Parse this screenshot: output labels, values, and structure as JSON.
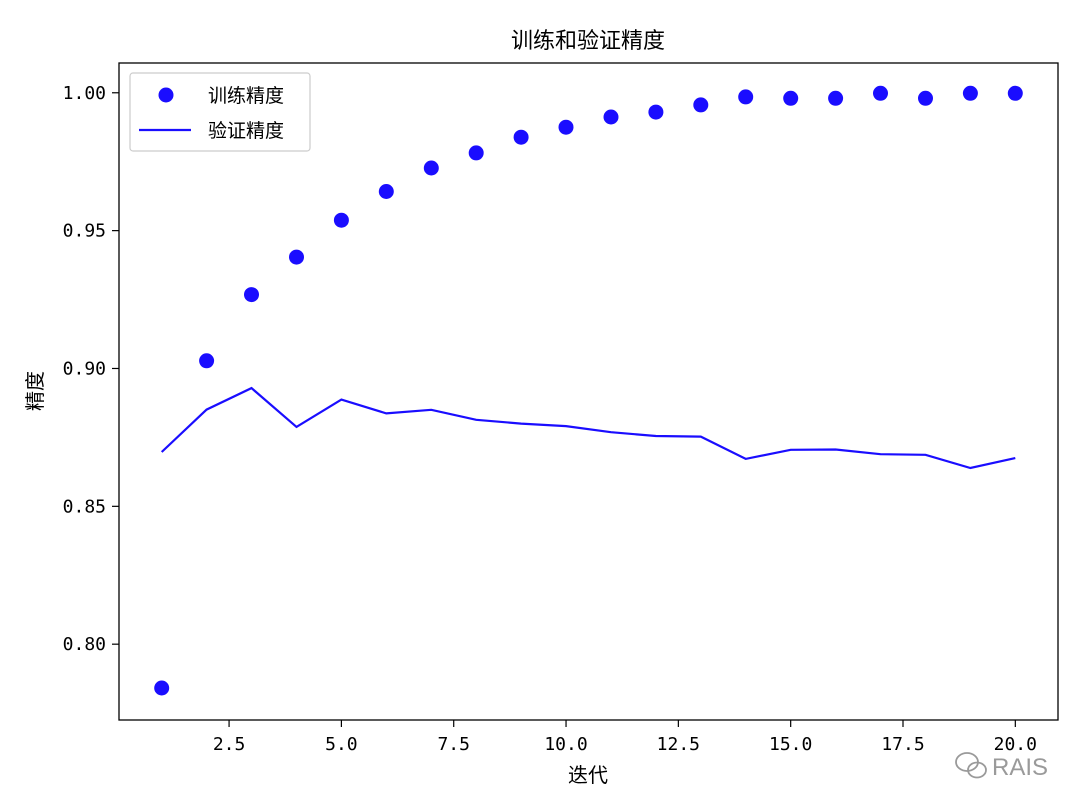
{
  "chart_data": {
    "type": "scatter",
    "title": "训练和验证精度",
    "xlabel": "迭代",
    "ylabel": "精度",
    "xlim": [
      0.05,
      20.95
    ],
    "ylim": [
      0.7725,
      1.0108
    ],
    "xticks": [
      2.5,
      5.0,
      7.5,
      10.0,
      12.5,
      15.0,
      17.5,
      20.0
    ],
    "xtick_labels": [
      "2.5",
      "5.0",
      "7.5",
      "10.0",
      "12.5",
      "15.0",
      "17.5",
      "20.0"
    ],
    "yticks": [
      0.8,
      0.85,
      0.9,
      0.95,
      1.0
    ],
    "ytick_labels": [
      "0.80",
      "0.85",
      "0.90",
      "0.95",
      "1.00"
    ],
    "grid": false,
    "legend_position": "top-left",
    "color": "#1a0dff",
    "series": [
      {
        "name": "训练精度",
        "style": "markers",
        "x": [
          1,
          2,
          3,
          4,
          5,
          6,
          7,
          8,
          9,
          10,
          11,
          12,
          13,
          14,
          15,
          16,
          17,
          18,
          19,
          20
        ],
        "y": [
          0.7841,
          0.9028,
          0.9268,
          0.9404,
          0.9538,
          0.9642,
          0.9727,
          0.9782,
          0.9839,
          0.9875,
          0.9912,
          0.993,
          0.9956,
          0.9985,
          0.998,
          0.998,
          0.9998,
          0.998,
          0.9998,
          0.9998
        ]
      },
      {
        "name": "验证精度",
        "style": "line",
        "x": [
          1,
          2,
          3,
          4,
          5,
          6,
          7,
          8,
          9,
          10,
          11,
          12,
          13,
          14,
          15,
          16,
          17,
          18,
          19,
          20
        ],
        "y": [
          0.8697,
          0.8851,
          0.8929,
          0.8788,
          0.8887,
          0.8837,
          0.885,
          0.8814,
          0.88,
          0.8791,
          0.8769,
          0.8755,
          0.8753,
          0.8672,
          0.8705,
          0.8706,
          0.8689,
          0.8687,
          0.8639,
          0.8675
        ]
      }
    ]
  },
  "watermark": {
    "icon": "wechat-icon",
    "text": "RAIS"
  }
}
